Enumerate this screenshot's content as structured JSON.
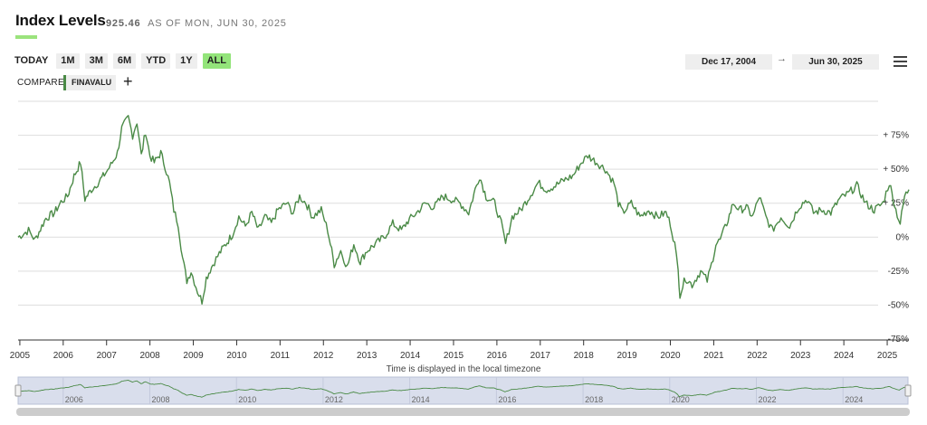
{
  "header": {
    "title": "Index Levels",
    "level_value": "925.46",
    "level_suffix": "AS OF MON, JUN 30, 2025"
  },
  "range_buttons": [
    {
      "label": "TODAY",
      "active": false
    },
    {
      "label": "1M",
      "active": false
    },
    {
      "label": "3M",
      "active": false
    },
    {
      "label": "6M",
      "active": false
    },
    {
      "label": "YTD",
      "active": false
    },
    {
      "label": "1Y",
      "active": false
    },
    {
      "label": "ALL",
      "active": true
    }
  ],
  "date_range": {
    "start": "Dec 17, 2004",
    "arrow": "→",
    "end": "Jun 30, 2025"
  },
  "compare": {
    "label": "COMPARE",
    "series": "FINAVALU",
    "add": "+"
  },
  "timezone_note": "Time is displayed in the local timezone",
  "colors": {
    "line": "#4a8a46",
    "active": "#93e47a",
    "navigator_bg": "#d9deec",
    "grid": "#dddddd"
  },
  "chart_data": {
    "type": "line",
    "series": [
      {
        "name": "FINAVALU",
        "points": [
          [
            2004.96,
            0
          ],
          [
            2005.2,
            5
          ],
          [
            2005.35,
            -2
          ],
          [
            2005.6,
            14
          ],
          [
            2005.8,
            18
          ],
          [
            2005.95,
            26
          ],
          [
            2006.1,
            30
          ],
          [
            2006.25,
            45
          ],
          [
            2006.4,
            55
          ],
          [
            2006.5,
            28
          ],
          [
            2006.65,
            35
          ],
          [
            2006.8,
            40
          ],
          [
            2006.95,
            46
          ],
          [
            2007.1,
            53
          ],
          [
            2007.25,
            62
          ],
          [
            2007.35,
            80
          ],
          [
            2007.5,
            88
          ],
          [
            2007.6,
            75
          ],
          [
            2007.7,
            85
          ],
          [
            2007.8,
            60
          ],
          [
            2007.9,
            78
          ],
          [
            2008.0,
            60
          ],
          [
            2008.1,
            55
          ],
          [
            2008.25,
            62
          ],
          [
            2008.35,
            52
          ],
          [
            2008.45,
            40
          ],
          [
            2008.55,
            20
          ],
          [
            2008.65,
            10
          ],
          [
            2008.75,
            -15
          ],
          [
            2008.85,
            -32
          ],
          [
            2008.95,
            -25
          ],
          [
            2009.1,
            -40
          ],
          [
            2009.2,
            -47
          ],
          [
            2009.3,
            -30
          ],
          [
            2009.45,
            -20
          ],
          [
            2009.6,
            -12
          ],
          [
            2009.75,
            -5
          ],
          [
            2009.9,
            2
          ],
          [
            2010.05,
            15
          ],
          [
            2010.2,
            8
          ],
          [
            2010.35,
            18
          ],
          [
            2010.5,
            5
          ],
          [
            2010.65,
            15
          ],
          [
            2010.8,
            10
          ],
          [
            2010.95,
            20
          ],
          [
            2011.15,
            25
          ],
          [
            2011.3,
            18
          ],
          [
            2011.45,
            30
          ],
          [
            2011.6,
            25
          ],
          [
            2011.75,
            15
          ],
          [
            2011.95,
            20
          ],
          [
            2012.1,
            5
          ],
          [
            2012.25,
            -20
          ],
          [
            2012.4,
            -10
          ],
          [
            2012.55,
            -22
          ],
          [
            2012.7,
            -5
          ],
          [
            2012.85,
            -18
          ],
          [
            2013.0,
            -10
          ],
          [
            2013.2,
            -5
          ],
          [
            2013.4,
            0
          ],
          [
            2013.6,
            10
          ],
          [
            2013.8,
            5
          ],
          [
            2013.95,
            12
          ],
          [
            2014.15,
            18
          ],
          [
            2014.35,
            25
          ],
          [
            2014.55,
            22
          ],
          [
            2014.75,
            30
          ],
          [
            2014.95,
            28
          ],
          [
            2015.15,
            25
          ],
          [
            2015.35,
            18
          ],
          [
            2015.5,
            35
          ],
          [
            2015.6,
            45
          ],
          [
            2015.75,
            30
          ],
          [
            2015.95,
            25
          ],
          [
            2016.1,
            10
          ],
          [
            2016.2,
            -5
          ],
          [
            2016.35,
            15
          ],
          [
            2016.55,
            20
          ],
          [
            2016.75,
            30
          ],
          [
            2016.95,
            40
          ],
          [
            2017.15,
            35
          ],
          [
            2017.35,
            38
          ],
          [
            2017.55,
            42
          ],
          [
            2017.75,
            45
          ],
          [
            2017.95,
            55
          ],
          [
            2018.1,
            60
          ],
          [
            2018.3,
            55
          ],
          [
            2018.5,
            50
          ],
          [
            2018.7,
            40
          ],
          [
            2018.8,
            25
          ],
          [
            2018.9,
            18
          ],
          [
            2019.1,
            25
          ],
          [
            2019.3,
            15
          ],
          [
            2019.5,
            20
          ],
          [
            2019.7,
            15
          ],
          [
            2019.9,
            18
          ],
          [
            2020.0,
            10
          ],
          [
            2020.1,
            -5
          ],
          [
            2020.18,
            -25
          ],
          [
            2020.22,
            -42
          ],
          [
            2020.35,
            -30
          ],
          [
            2020.5,
            -35
          ],
          [
            2020.7,
            -25
          ],
          [
            2020.85,
            -32
          ],
          [
            2020.95,
            -20
          ],
          [
            2021.05,
            -5
          ],
          [
            2021.15,
            -2
          ],
          [
            2021.3,
            10
          ],
          [
            2021.45,
            25
          ],
          [
            2021.6,
            20
          ],
          [
            2021.75,
            22
          ],
          [
            2021.9,
            15
          ],
          [
            2022.05,
            30
          ],
          [
            2022.2,
            15
          ],
          [
            2022.35,
            5
          ],
          [
            2022.55,
            15
          ],
          [
            2022.75,
            8
          ],
          [
            2022.95,
            22
          ],
          [
            2023.15,
            28
          ],
          [
            2023.3,
            18
          ],
          [
            2023.5,
            20
          ],
          [
            2023.7,
            18
          ],
          [
            2023.9,
            28
          ],
          [
            2024.1,
            32
          ],
          [
            2024.3,
            38
          ],
          [
            2024.5,
            25
          ],
          [
            2024.7,
            20
          ],
          [
            2024.9,
            25
          ],
          [
            2025.05,
            40
          ],
          [
            2025.2,
            20
          ],
          [
            2025.3,
            10
          ],
          [
            2025.4,
            30
          ],
          [
            2025.5,
            35
          ]
        ]
      }
    ],
    "xlim": [
      2004.96,
      2025.5
    ],
    "ylim": [
      -75,
      100
    ],
    "y_ticks": [
      "+ 75%",
      "+ 50%",
      "+ 25%",
      "0%",
      "-25%",
      "-50%",
      "-75%"
    ],
    "y_tick_values": [
      75,
      50,
      25,
      0,
      -25,
      -50,
      -75
    ],
    "x_ticks": [
      "2005",
      "2006",
      "2007",
      "2008",
      "2009",
      "2010",
      "2011",
      "2012",
      "2013",
      "2014",
      "2015",
      "2016",
      "2017",
      "2018",
      "2019",
      "2020",
      "2021",
      "2022",
      "2023",
      "2024",
      "2025"
    ],
    "navigator_ticks": [
      "2006",
      "2008",
      "2010",
      "2012",
      "2014",
      "2016",
      "2018",
      "2020",
      "2022",
      "2024"
    ],
    "grid": true
  }
}
